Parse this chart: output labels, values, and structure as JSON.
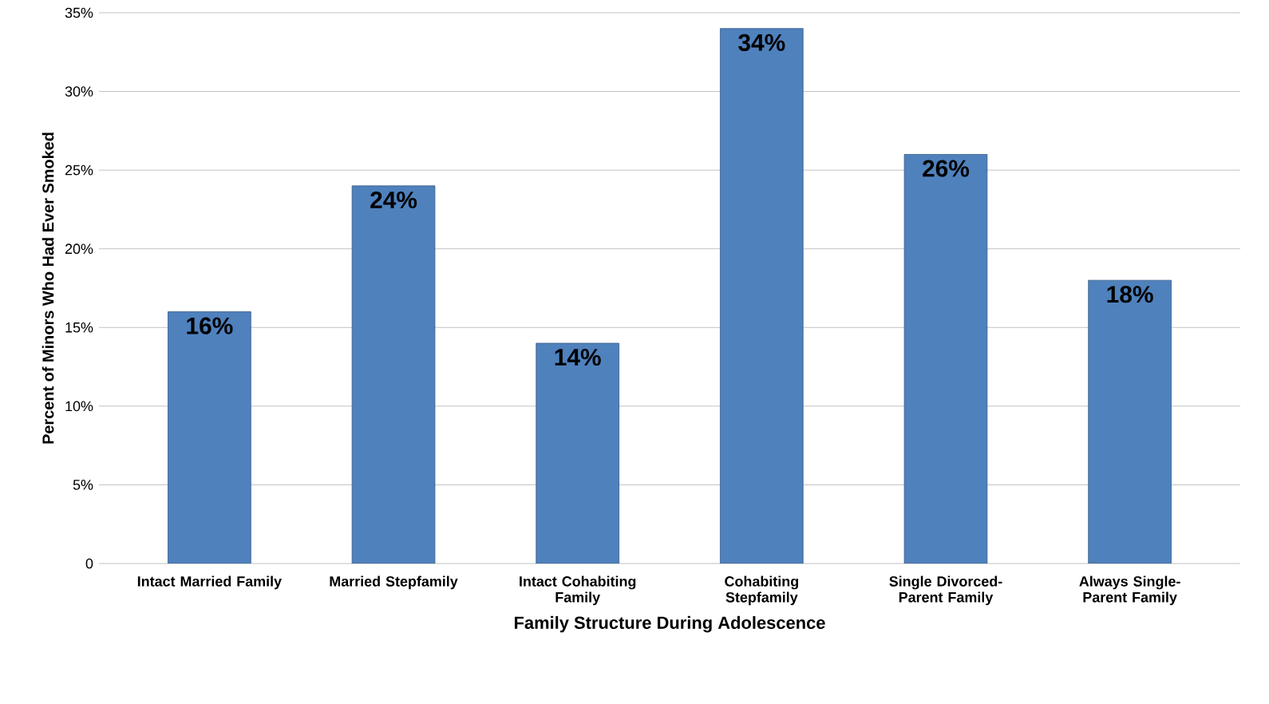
{
  "chart_data": {
    "type": "bar",
    "xlabel": "Family Structure During Adolescence",
    "ylabel": "Percent of Minors Who Had Ever Smoked",
    "categories": [
      "Intact Married Family",
      "Married Stepfamily",
      "Intact Cohabiting Family",
      "Cohabiting Stepfamily",
      "Single Divorced-Parent Family",
      "Always Single-Parent Family"
    ],
    "values": [
      16,
      24,
      14,
      34,
      26,
      18
    ],
    "value_labels": [
      "16%",
      "24%",
      "14%",
      "34%",
      "26%",
      "18%"
    ],
    "color": "#4f81bd",
    "ylim": [
      0,
      35
    ],
    "yticks": [
      {
        "value": 0,
        "label": "0"
      },
      {
        "value": 5,
        "label": "5%"
      },
      {
        "value": 10,
        "label": "10%"
      },
      {
        "value": 15,
        "label": "15%"
      },
      {
        "value": 20,
        "label": "20%"
      },
      {
        "value": 25,
        "label": "25%"
      },
      {
        "value": 30,
        "label": "30%"
      },
      {
        "value": 35,
        "label": "35%"
      }
    ],
    "grid": "y"
  }
}
